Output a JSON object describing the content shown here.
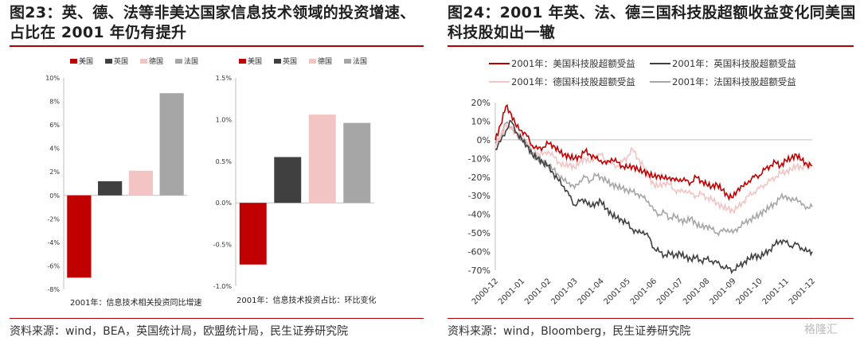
{
  "left_panel": {
    "title": "图23：英、德、法等非美达国家信息技术领域的投资增速、占比在 2001 年仍有提升",
    "source": "资料来源：wind，BEA，英国统计局，欧盟统计局，民生证券研究院"
  },
  "right_panel": {
    "title": "图24：2001 年英、法、德三国科技股超额收益变化同美国科技股如出一辙",
    "source": "资料来源：wind，Bloomberg，民生证券研究院"
  },
  "watermark": "格隆汇",
  "colors": {
    "us": "#c00000",
    "uk": "#404040",
    "de": "#f2c4c4",
    "fr": "#a6a6a6",
    "accent": "#b30000"
  },
  "chart_data": [
    {
      "type": "bar",
      "title": "",
      "xlabel": "2001年：信息技术相关投资同比增速",
      "ylabel": "",
      "ylim": [
        -8,
        10
      ],
      "yticks": [
        "10%",
        "8%",
        "6%",
        "4%",
        "2%",
        "0%",
        "-2%",
        "-4%",
        "-6%",
        "-8%"
      ],
      "legend_position": "top",
      "series": [
        {
          "name": "美国",
          "value": -7.0,
          "color": "#c00000"
        },
        {
          "name": "英国",
          "value": 1.2,
          "color": "#404040"
        },
        {
          "name": "德国",
          "value": 2.1,
          "color": "#f2c4c4"
        },
        {
          "name": "法国",
          "value": 8.7,
          "color": "#a6a6a6"
        }
      ]
    },
    {
      "type": "bar",
      "title": "",
      "xlabel": "2001年：信息技术投资占比：环比变化",
      "ylabel": "",
      "ylim": [
        -1.0,
        1.5
      ],
      "yticks": [
        "1.5%",
        "1.0%",
        "0.5%",
        "0.0%",
        "-0.5%",
        "-1.0%"
      ],
      "legend_position": "top",
      "series": [
        {
          "name": "美国",
          "value": -0.74,
          "color": "#c00000"
        },
        {
          "name": "英国",
          "value": 0.55,
          "color": "#404040"
        },
        {
          "name": "德国",
          "value": 1.06,
          "color": "#f2c4c4"
        },
        {
          "name": "法国",
          "value": 0.96,
          "color": "#a6a6a6"
        }
      ]
    },
    {
      "type": "line",
      "title": "",
      "xlabel": "",
      "ylabel": "",
      "ylim": [
        -70,
        20
      ],
      "yticks": [
        "20%",
        "10%",
        "0%",
        "-10%",
        "-20%",
        "-30%",
        "-40%",
        "-50%",
        "-60%",
        "-70%"
      ],
      "categories": [
        "2000-12",
        "2001-01",
        "2001-02",
        "2001-03",
        "2001-04",
        "2001-05",
        "2001-06",
        "2001-07",
        "2001-08",
        "2001-09",
        "2001-10",
        "2001-11",
        "2001-12"
      ],
      "legend_position": "top",
      "series": [
        {
          "name": "2001年：美国科技股超额受益",
          "color": "#c00000",
          "points": [
            [
              0,
              0
            ],
            [
              0.2,
              8
            ],
            [
              0.4,
              18
            ],
            [
              0.6,
              14
            ],
            [
              0.8,
              7
            ],
            [
              1.0,
              5
            ],
            [
              1.2,
              2
            ],
            [
              1.4,
              -3
            ],
            [
              1.6,
              -5
            ],
            [
              1.8,
              -4
            ],
            [
              2.0,
              -2
            ],
            [
              2.2,
              -3
            ],
            [
              2.4,
              -6
            ],
            [
              2.6,
              -8
            ],
            [
              2.8,
              -9
            ],
            [
              3.0,
              -10
            ],
            [
              3.2,
              -9
            ],
            [
              3.4,
              -6
            ],
            [
              3.6,
              -8
            ],
            [
              3.8,
              -10
            ],
            [
              4.0,
              -11
            ],
            [
              4.2,
              -13
            ],
            [
              4.4,
              -10
            ],
            [
              4.6,
              -12
            ],
            [
              4.8,
              -14
            ],
            [
              5.0,
              -15
            ],
            [
              5.2,
              -14
            ],
            [
              5.4,
              -16
            ],
            [
              5.6,
              -17
            ],
            [
              5.8,
              -18
            ],
            [
              6.0,
              -20
            ],
            [
              6.2,
              -19
            ],
            [
              6.4,
              -21
            ],
            [
              6.6,
              -20
            ],
            [
              6.8,
              -22
            ],
            [
              7.0,
              -21
            ],
            [
              7.2,
              -22
            ],
            [
              7.4,
              -23
            ],
            [
              7.6,
              -20
            ],
            [
              7.8,
              -22
            ],
            [
              8.0,
              -24
            ],
            [
              8.2,
              -25
            ],
            [
              8.4,
              -24
            ],
            [
              8.6,
              -27
            ],
            [
              8.8,
              -30
            ],
            [
              9.0,
              -31
            ],
            [
              9.2,
              -26
            ],
            [
              9.4,
              -25
            ],
            [
              9.6,
              -22
            ],
            [
              9.8,
              -20
            ],
            [
              10.0,
              -19
            ],
            [
              10.2,
              -16
            ],
            [
              10.4,
              -14
            ],
            [
              10.6,
              -12
            ],
            [
              10.8,
              -14
            ],
            [
              11.0,
              -11
            ],
            [
              11.2,
              -10
            ],
            [
              11.4,
              -8
            ],
            [
              11.6,
              -11
            ],
            [
              11.8,
              -13
            ],
            [
              12.0,
              -14
            ]
          ]
        },
        {
          "name": "2001年：英国科技股超额受益",
          "color": "#404040",
          "points": [
            [
              0,
              -5
            ],
            [
              0.2,
              -1
            ],
            [
              0.4,
              5
            ],
            [
              0.6,
              10
            ],
            [
              0.8,
              4
            ],
            [
              1.0,
              0
            ],
            [
              1.2,
              -3
            ],
            [
              1.4,
              -8
            ],
            [
              1.6,
              -10
            ],
            [
              1.8,
              -12
            ],
            [
              2.0,
              -14
            ],
            [
              2.2,
              -18
            ],
            [
              2.4,
              -22
            ],
            [
              2.6,
              -25
            ],
            [
              2.8,
              -30
            ],
            [
              3.0,
              -35
            ],
            [
              3.2,
              -33
            ],
            [
              3.4,
              -32
            ],
            [
              3.6,
              -36
            ],
            [
              3.8,
              -34
            ],
            [
              4.0,
              -33
            ],
            [
              4.2,
              -37
            ],
            [
              4.4,
              -40
            ],
            [
              4.6,
              -42
            ],
            [
              4.8,
              -43
            ],
            [
              5.0,
              -45
            ],
            [
              5.2,
              -48
            ],
            [
              5.4,
              -50
            ],
            [
              5.6,
              -49
            ],
            [
              5.8,
              -52
            ],
            [
              6.0,
              -58
            ],
            [
              6.2,
              -60
            ],
            [
              6.4,
              -62
            ],
            [
              6.6,
              -61
            ],
            [
              6.8,
              -62
            ],
            [
              7.0,
              -61
            ],
            [
              7.2,
              -63
            ],
            [
              7.4,
              -64
            ],
            [
              7.6,
              -63
            ],
            [
              7.8,
              -65
            ],
            [
              8.0,
              -64
            ],
            [
              8.2,
              -65
            ],
            [
              8.4,
              -66
            ],
            [
              8.6,
              -68
            ],
            [
              8.8,
              -69
            ],
            [
              9.0,
              -70
            ],
            [
              9.2,
              -68
            ],
            [
              9.4,
              -66
            ],
            [
              9.6,
              -64
            ],
            [
              9.8,
              -62
            ],
            [
              10.0,
              -63
            ],
            [
              10.2,
              -61
            ],
            [
              10.4,
              -59
            ],
            [
              10.6,
              -56
            ],
            [
              10.8,
              -54
            ],
            [
              11.0,
              -55
            ],
            [
              11.2,
              -57
            ],
            [
              11.4,
              -56
            ],
            [
              11.6,
              -58
            ],
            [
              11.8,
              -60
            ],
            [
              12.0,
              -60
            ]
          ]
        },
        {
          "name": "2001年：德国科技股超额受益",
          "color": "#f2c4c4",
          "points": [
            [
              0,
              -3
            ],
            [
              0.2,
              2
            ],
            [
              0.4,
              8
            ],
            [
              0.6,
              6
            ],
            [
              0.8,
              3
            ],
            [
              1.0,
              2
            ],
            [
              1.2,
              -1
            ],
            [
              1.4,
              -4
            ],
            [
              1.6,
              -7
            ],
            [
              1.8,
              -8
            ],
            [
              2.0,
              -6
            ],
            [
              2.2,
              -9
            ],
            [
              2.4,
              -12
            ],
            [
              2.6,
              -14
            ],
            [
              2.8,
              -13
            ],
            [
              3.0,
              -15
            ],
            [
              3.2,
              -12
            ],
            [
              3.4,
              -10
            ],
            [
              3.6,
              -12
            ],
            [
              3.8,
              -9
            ],
            [
              4.0,
              -8
            ],
            [
              4.2,
              -11
            ],
            [
              4.4,
              -13
            ],
            [
              4.6,
              -14
            ],
            [
              4.8,
              -12
            ],
            [
              5.0,
              -9
            ],
            [
              5.2,
              -5
            ],
            [
              5.4,
              -10
            ],
            [
              5.6,
              -14
            ],
            [
              5.8,
              -20
            ],
            [
              6.0,
              -24
            ],
            [
              6.2,
              -25
            ],
            [
              6.4,
              -23
            ],
            [
              6.6,
              -24
            ],
            [
              6.8,
              -27
            ],
            [
              7.0,
              -28
            ],
            [
              7.2,
              -27
            ],
            [
              7.4,
              -29
            ],
            [
              7.6,
              -30
            ],
            [
              7.8,
              -29
            ],
            [
              8.0,
              -31
            ],
            [
              8.2,
              -32
            ],
            [
              8.4,
              -34
            ],
            [
              8.6,
              -36
            ],
            [
              8.8,
              -37
            ],
            [
              9.0,
              -38
            ],
            [
              9.2,
              -36
            ],
            [
              9.4,
              -33
            ],
            [
              9.6,
              -30
            ],
            [
              9.8,
              -28
            ],
            [
              10.0,
              -26
            ],
            [
              10.2,
              -24
            ],
            [
              10.4,
              -22
            ],
            [
              10.6,
              -20
            ],
            [
              10.8,
              -18
            ],
            [
              11.0,
              -17
            ],
            [
              11.2,
              -16
            ],
            [
              11.4,
              -14
            ],
            [
              11.6,
              -15
            ],
            [
              11.8,
              -13
            ],
            [
              12.0,
              -14
            ]
          ]
        },
        {
          "name": "2001年：法国科技股超额受益",
          "color": "#a6a6a6",
          "points": [
            [
              0,
              -2
            ],
            [
              0.2,
              2
            ],
            [
              0.4,
              9
            ],
            [
              0.6,
              7
            ],
            [
              0.8,
              3
            ],
            [
              1.0,
              1
            ],
            [
              1.2,
              -3
            ],
            [
              1.4,
              -7
            ],
            [
              1.6,
              -10
            ],
            [
              1.8,
              -12
            ],
            [
              2.0,
              -14
            ],
            [
              2.2,
              -16
            ],
            [
              2.4,
              -19
            ],
            [
              2.6,
              -22
            ],
            [
              2.8,
              -23
            ],
            [
              3.0,
              -26
            ],
            [
              3.2,
              -22
            ],
            [
              3.4,
              -20
            ],
            [
              3.6,
              -22
            ],
            [
              3.8,
              -19
            ],
            [
              4.0,
              -20
            ],
            [
              4.2,
              -22
            ],
            [
              4.4,
              -24
            ],
            [
              4.6,
              -25
            ],
            [
              4.8,
              -26
            ],
            [
              5.0,
              -27
            ],
            [
              5.2,
              -28
            ],
            [
              5.4,
              -29
            ],
            [
              5.6,
              -31
            ],
            [
              5.8,
              -33
            ],
            [
              6.0,
              -38
            ],
            [
              6.2,
              -40
            ],
            [
              6.4,
              -39
            ],
            [
              6.6,
              -42
            ],
            [
              6.8,
              -41
            ],
            [
              7.0,
              -43
            ],
            [
              7.2,
              -44
            ],
            [
              7.4,
              -42
            ],
            [
              7.6,
              -45
            ],
            [
              7.8,
              -47
            ],
            [
              8.0,
              -46
            ],
            [
              8.2,
              -48
            ],
            [
              8.4,
              -50
            ],
            [
              8.6,
              -49
            ],
            [
              8.8,
              -48
            ],
            [
              9.0,
              -50
            ],
            [
              9.2,
              -47
            ],
            [
              9.4,
              -45
            ],
            [
              9.6,
              -43
            ],
            [
              9.8,
              -42
            ],
            [
              10.0,
              -40
            ],
            [
              10.2,
              -38
            ],
            [
              10.4,
              -36
            ],
            [
              10.6,
              -34
            ],
            [
              10.8,
              -31
            ],
            [
              11.0,
              -30
            ],
            [
              11.2,
              -33
            ],
            [
              11.4,
              -31
            ],
            [
              11.6,
              -35
            ],
            [
              11.8,
              -36
            ],
            [
              12.0,
              -36
            ]
          ]
        }
      ]
    }
  ]
}
